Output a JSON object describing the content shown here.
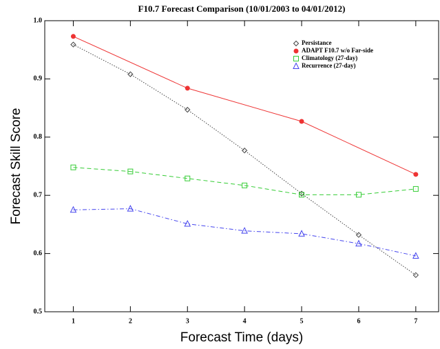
{
  "chart_data": {
    "type": "line",
    "title": "F10.7 Forecast Comparison (10/01/2003 to 04/01/2012)",
    "x_label": "Forecast Time (days)",
    "y_label": "Forecast Skill Score",
    "xlim": [
      0.5,
      7.4
    ],
    "xticks": [
      1,
      2,
      3,
      4,
      5,
      6,
      7
    ],
    "ylim": [
      0.5,
      1.0
    ],
    "yticks": [
      0.5,
      0.6,
      0.7,
      0.8,
      0.9,
      {
        "value": 1.0,
        "label": "1.0"
      }
    ],
    "legend": "upper right",
    "series": [
      {
        "name": "Persistance",
        "color": "#444444",
        "dash": "dotted",
        "marker": "diamond",
        "x": [
          1,
          2,
          3,
          4,
          5,
          6,
          7
        ],
        "values": [
          0.959,
          0.908,
          0.847,
          0.777,
          0.703,
          0.632,
          0.563
        ]
      },
      {
        "name": "ADAPT F10.7 w/o Far-side",
        "color": "#ee3333",
        "dash": "solid",
        "marker": "circle",
        "x": [
          1,
          3,
          5,
          7
        ],
        "values": [
          0.973,
          0.884,
          0.827,
          0.736
        ]
      },
      {
        "name": "Climatology (27-day)",
        "color": "#33cc33",
        "dash": "dashed",
        "marker": "square",
        "x": [
          1,
          2,
          3,
          4,
          5,
          6,
          7
        ],
        "values": [
          0.748,
          0.741,
          0.729,
          0.717,
          0.701,
          0.701,
          0.711
        ]
      },
      {
        "name": "Recurrence (27-day)",
        "color": "#4444ee",
        "dash": "dashdot",
        "marker": "triangle",
        "x": [
          1,
          2,
          3,
          4,
          5,
          6,
          7
        ],
        "values": [
          0.675,
          0.677,
          0.651,
          0.639,
          0.634,
          0.617,
          0.596
        ]
      }
    ]
  }
}
